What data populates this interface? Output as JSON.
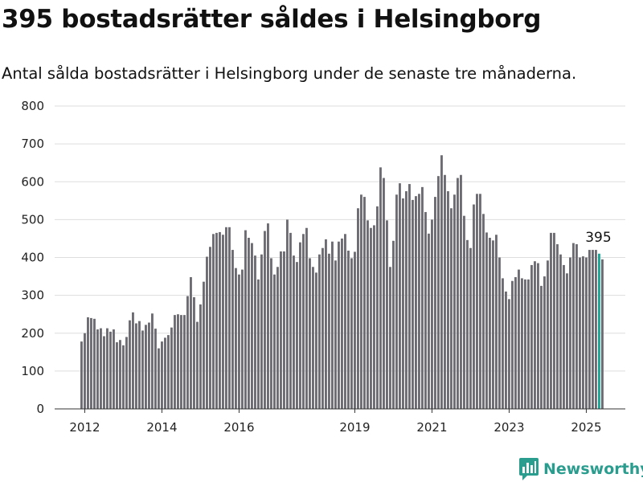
{
  "title": "395 bostadsrätter såldes i Helsingborg",
  "subtitle": "Antal sålda bostadsrätter i Helsingborg under de senaste tre månaderna.",
  "brand": {
    "name": "Newsworthy",
    "icon": "newsworthy-logo-icon",
    "color": "#2a9d8f"
  },
  "colors": {
    "bar": "#6d6c72",
    "highlight": "#1aa595",
    "grid": "#dddddd"
  },
  "chart_data": {
    "type": "bar",
    "title": "395 bostadsrätter såldes i Helsingborg",
    "subtitle": "Antal sålda bostadsrätter i Helsingborg under de senaste tre månaderna.",
    "xlabel": "",
    "ylabel": "",
    "ylim": [
      0,
      800
    ],
    "yticks": [
      "0",
      "100",
      "200",
      "300",
      "400",
      "500",
      "600",
      "700",
      "800"
    ],
    "xticks": [
      {
        "label": "2012",
        "index": 1
      },
      {
        "label": "2014",
        "index": 25
      },
      {
        "label": "2016",
        "index": 49
      },
      {
        "label": "2019",
        "index": 85
      },
      {
        "label": "2021",
        "index": 109
      },
      {
        "label": "2023",
        "index": 133
      },
      {
        "label": "2025",
        "index": 157
      }
    ],
    "grid": "horizontal",
    "annotation": {
      "label": "395",
      "index": 161
    },
    "highlight_index": 161,
    "values": [
      178,
      200,
      242,
      240,
      238,
      210,
      213,
      192,
      213,
      204,
      210,
      176,
      182,
      168,
      190,
      234,
      255,
      226,
      232,
      207,
      222,
      228,
      252,
      212,
      160,
      178,
      188,
      195,
      215,
      248,
      250,
      248,
      248,
      298,
      348,
      295,
      230,
      276,
      336,
      402,
      428,
      462,
      465,
      467,
      460,
      480,
      480,
      420,
      372,
      355,
      368,
      472,
      452,
      438,
      405,
      342,
      408,
      470,
      490,
      398,
      355,
      375,
      416,
      416,
      500,
      465,
      405,
      388,
      440,
      462,
      478,
      398,
      375,
      360,
      408,
      425,
      448,
      410,
      442,
      392,
      442,
      450,
      462,
      418,
      398,
      415,
      530,
      566,
      560,
      498,
      478,
      485,
      535,
      638,
      610,
      498,
      375,
      444,
      566,
      596,
      556,
      575,
      594,
      552,
      562,
      568,
      586,
      520,
      463,
      500,
      560,
      615,
      670,
      618,
      575,
      530,
      566,
      610,
      618,
      510,
      446,
      425,
      540,
      568,
      568,
      515,
      466,
      452,
      445,
      460,
      400,
      345,
      310,
      290,
      338,
      348,
      368,
      345,
      342,
      342,
      380,
      390,
      385,
      325,
      350,
      392,
      465,
      465,
      435,
      408,
      380,
      358,
      400,
      438,
      435,
      400,
      403,
      400,
      420,
      420,
      420,
      410,
      395
    ]
  }
}
